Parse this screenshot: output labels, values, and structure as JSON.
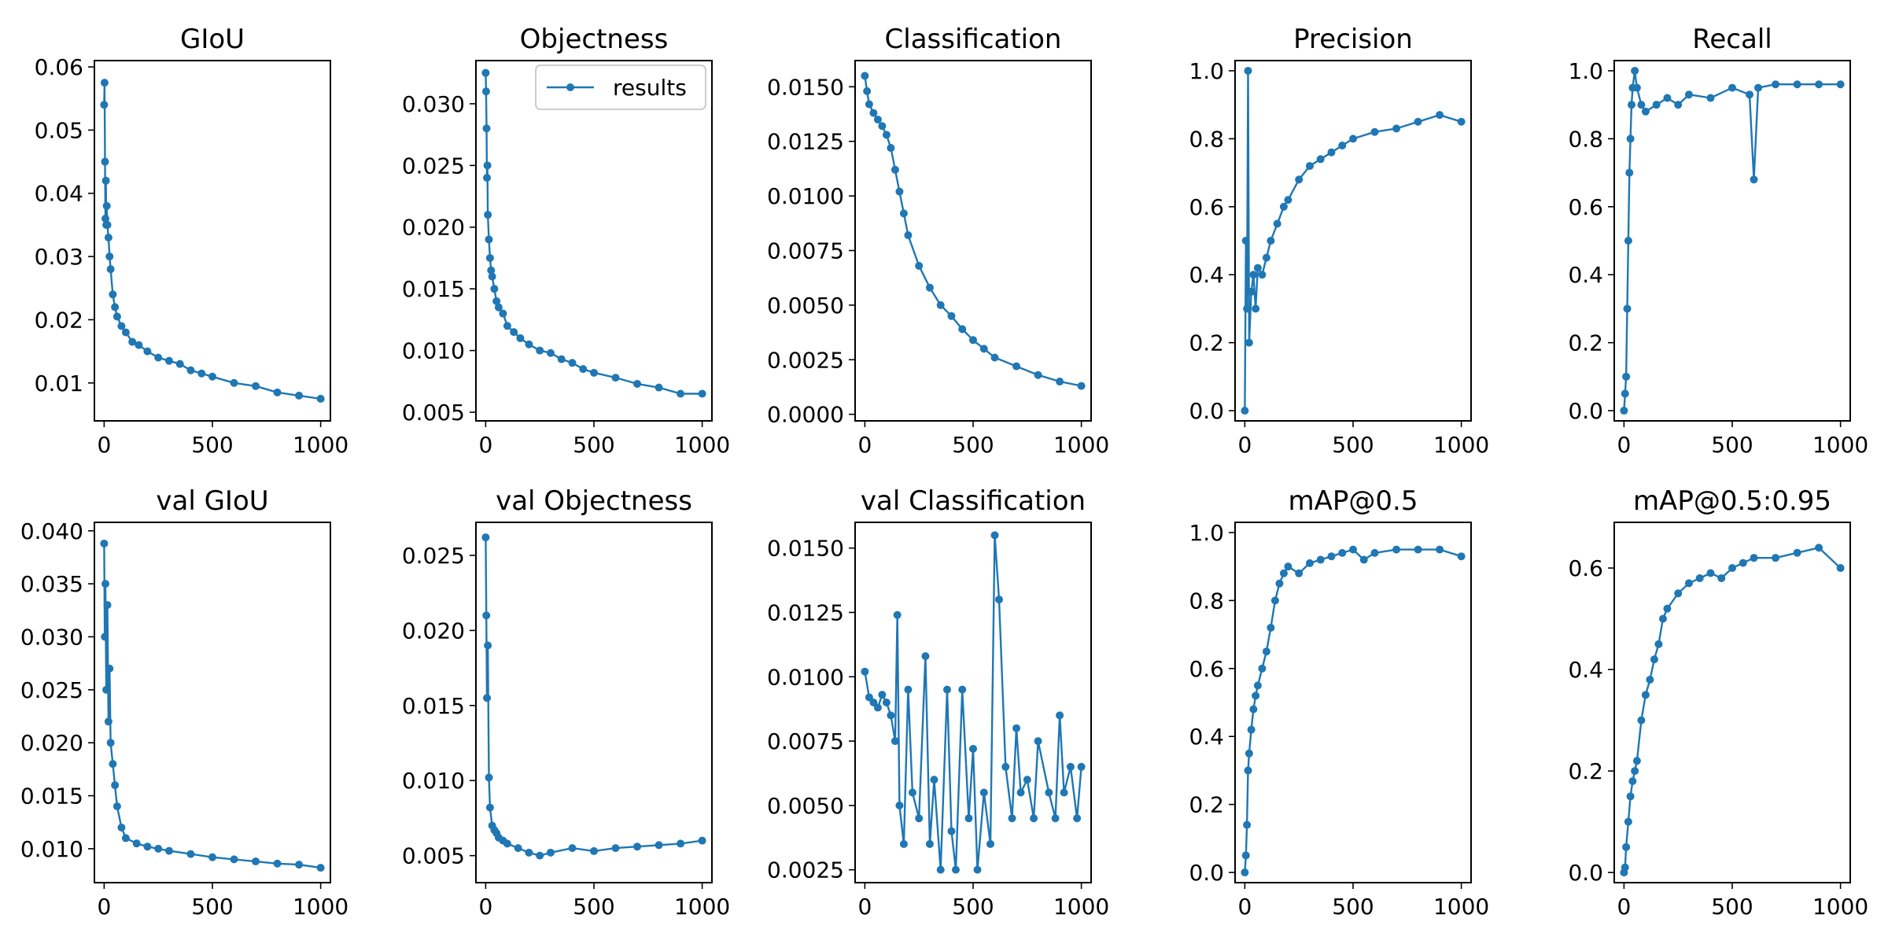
{
  "figure": {
    "line_color": "#1f77b4",
    "legend_label": "results"
  },
  "chart_data": [
    {
      "type": "scatter",
      "title": "GIoU",
      "ylim": [
        0.004,
        0.061
      ],
      "xlim": [
        -45,
        1045
      ],
      "xticks": [
        0,
        500,
        1000
      ],
      "yticks": [
        0.01,
        0.02,
        0.03,
        0.04,
        0.05,
        0.06
      ],
      "ytick_labels": [
        "0.01",
        "0.02",
        "0.03",
        "0.04",
        "0.05",
        "0.06"
      ],
      "series": [
        {
          "name": "results",
          "x": [
            0,
            2,
            4,
            6,
            8,
            10,
            12,
            15,
            20,
            25,
            30,
            40,
            50,
            60,
            80,
            100,
            130,
            160,
            200,
            250,
            300,
            350,
            400,
            450,
            500,
            600,
            700,
            800,
            900,
            1000
          ],
          "y": [
            0.054,
            0.0575,
            0.045,
            0.036,
            0.042,
            0.035,
            0.038,
            0.035,
            0.033,
            0.03,
            0.028,
            0.024,
            0.022,
            0.0205,
            0.019,
            0.018,
            0.0165,
            0.016,
            0.015,
            0.014,
            0.0135,
            0.013,
            0.012,
            0.0115,
            0.011,
            0.01,
            0.0095,
            0.0085,
            0.008,
            0.0075
          ]
        }
      ]
    },
    {
      "type": "scatter",
      "title": "Objectness",
      "ylim": [
        0.0043,
        0.0335
      ],
      "xlim": [
        -45,
        1045
      ],
      "xticks": [
        0,
        500,
        1000
      ],
      "yticks": [
        0.005,
        0.01,
        0.015,
        0.02,
        0.025,
        0.03
      ],
      "ytick_labels": [
        "0.005",
        "0.010",
        "0.015",
        "0.020",
        "0.025",
        "0.030"
      ],
      "legend": {
        "label": "results",
        "position": "upper right"
      },
      "series": [
        {
          "name": "results",
          "x": [
            0,
            2,
            4,
            6,
            8,
            10,
            15,
            20,
            25,
            30,
            40,
            50,
            60,
            80,
            100,
            130,
            160,
            200,
            250,
            300,
            350,
            400,
            450,
            500,
            600,
            700,
            800,
            900,
            1000
          ],
          "y": [
            0.0325,
            0.031,
            0.028,
            0.024,
            0.025,
            0.021,
            0.019,
            0.0175,
            0.0165,
            0.016,
            0.015,
            0.014,
            0.0135,
            0.013,
            0.012,
            0.0115,
            0.011,
            0.0105,
            0.01,
            0.0098,
            0.0093,
            0.009,
            0.0085,
            0.0082,
            0.0078,
            0.0073,
            0.007,
            0.0065,
            0.0065
          ]
        }
      ]
    },
    {
      "type": "scatter",
      "title": "Classification",
      "ylim": [
        -0.0003,
        0.0162
      ],
      "xlim": [
        -45,
        1045
      ],
      "xticks": [
        0,
        500,
        1000
      ],
      "yticks": [
        0,
        0.0025,
        0.005,
        0.0075,
        0.01,
        0.0125,
        0.015
      ],
      "ytick_labels": [
        "0.0000",
        "0.0025",
        "0.0050",
        "0.0075",
        "0.0100",
        "0.0125",
        "0.0150"
      ],
      "series": [
        {
          "name": "results",
          "x": [
            0,
            10,
            20,
            40,
            60,
            80,
            100,
            120,
            140,
            160,
            180,
            200,
            250,
            300,
            350,
            400,
            450,
            500,
            550,
            600,
            700,
            800,
            900,
            1000
          ],
          "y": [
            0.0155,
            0.0148,
            0.0142,
            0.0138,
            0.0135,
            0.0132,
            0.0128,
            0.0122,
            0.0112,
            0.0102,
            0.0092,
            0.0082,
            0.0068,
            0.0058,
            0.005,
            0.0045,
            0.0039,
            0.0034,
            0.003,
            0.0026,
            0.0022,
            0.0018,
            0.0015,
            0.0013
          ]
        }
      ]
    },
    {
      "type": "scatter",
      "title": "Precision",
      "ylim": [
        -0.03,
        1.03
      ],
      "xlim": [
        -45,
        1045
      ],
      "xticks": [
        0,
        500,
        1000
      ],
      "yticks": [
        0,
        0.2,
        0.4,
        0.6,
        0.8,
        1.0
      ],
      "ytick_labels": [
        "0.0",
        "0.2",
        "0.4",
        "0.6",
        "0.8",
        "1.0"
      ],
      "series": [
        {
          "name": "results",
          "x": [
            0,
            5,
            10,
            15,
            20,
            30,
            40,
            50,
            60,
            80,
            100,
            120,
            150,
            180,
            200,
            250,
            300,
            350,
            400,
            450,
            500,
            600,
            700,
            800,
            900,
            1000
          ],
          "y": [
            0.0,
            0.5,
            0.3,
            1.0,
            0.2,
            0.35,
            0.4,
            0.3,
            0.42,
            0.4,
            0.45,
            0.5,
            0.55,
            0.6,
            0.62,
            0.68,
            0.72,
            0.74,
            0.76,
            0.78,
            0.8,
            0.82,
            0.83,
            0.85,
            0.87,
            0.85
          ]
        }
      ]
    },
    {
      "type": "scatter",
      "title": "Recall",
      "ylim": [
        -0.03,
        1.03
      ],
      "xlim": [
        -45,
        1045
      ],
      "xticks": [
        0,
        500,
        1000
      ],
      "yticks": [
        0,
        0.2,
        0.4,
        0.6,
        0.8,
        1.0
      ],
      "ytick_labels": [
        "0.0",
        "0.2",
        "0.4",
        "0.6",
        "0.8",
        "1.0"
      ],
      "series": [
        {
          "name": "results",
          "x": [
            0,
            5,
            10,
            15,
            20,
            25,
            30,
            35,
            40,
            50,
            60,
            80,
            100,
            150,
            200,
            250,
            300,
            400,
            500,
            580,
            600,
            620,
            700,
            800,
            900,
            1000
          ],
          "y": [
            0.0,
            0.05,
            0.1,
            0.3,
            0.5,
            0.7,
            0.8,
            0.9,
            0.95,
            1.0,
            0.95,
            0.9,
            0.88,
            0.9,
            0.92,
            0.9,
            0.93,
            0.92,
            0.95,
            0.93,
            0.68,
            0.95,
            0.96,
            0.96,
            0.96,
            0.96
          ]
        }
      ]
    },
    {
      "type": "scatter",
      "title": "val GIoU",
      "ylim": [
        0.0068,
        0.0408
      ],
      "xlim": [
        -45,
        1045
      ],
      "xticks": [
        0,
        500,
        1000
      ],
      "yticks": [
        0.01,
        0.015,
        0.02,
        0.025,
        0.03,
        0.035,
        0.04
      ],
      "ytick_labels": [
        "0.010",
        "0.015",
        "0.020",
        "0.025",
        "0.030",
        "0.035",
        "0.040"
      ],
      "series": [
        {
          "name": "results",
          "x": [
            0,
            3,
            6,
            10,
            15,
            20,
            25,
            30,
            40,
            50,
            60,
            80,
            100,
            150,
            200,
            250,
            300,
            400,
            500,
            600,
            700,
            800,
            900,
            1000
          ],
          "y": [
            0.0388,
            0.03,
            0.035,
            0.025,
            0.033,
            0.022,
            0.027,
            0.02,
            0.018,
            0.016,
            0.014,
            0.012,
            0.011,
            0.0105,
            0.0102,
            0.01,
            0.0098,
            0.0095,
            0.0092,
            0.009,
            0.0088,
            0.0086,
            0.0085,
            0.0082
          ]
        }
      ]
    },
    {
      "type": "scatter",
      "title": "val Objectness",
      "ylim": [
        0.0032,
        0.0272
      ],
      "xlim": [
        -45,
        1045
      ],
      "xticks": [
        0,
        500,
        1000
      ],
      "yticks": [
        0.005,
        0.01,
        0.015,
        0.02,
        0.025
      ],
      "ytick_labels": [
        "0.005",
        "0.010",
        "0.015",
        "0.020",
        "0.025"
      ],
      "series": [
        {
          "name": "results",
          "x": [
            0,
            3,
            6,
            10,
            15,
            20,
            30,
            40,
            50,
            60,
            80,
            100,
            150,
            200,
            250,
            300,
            400,
            500,
            600,
            700,
            800,
            900,
            1000
          ],
          "y": [
            0.0262,
            0.021,
            0.0155,
            0.019,
            0.0102,
            0.0082,
            0.007,
            0.0067,
            0.0065,
            0.0062,
            0.006,
            0.0058,
            0.0055,
            0.0052,
            0.005,
            0.0052,
            0.0055,
            0.0053,
            0.0055,
            0.0056,
            0.0057,
            0.0058,
            0.006
          ]
        }
      ]
    },
    {
      "type": "scatter",
      "title": "val Classification",
      "ylim": [
        0.002,
        0.016
      ],
      "xlim": [
        -45,
        1045
      ],
      "xticks": [
        0,
        500,
        1000
      ],
      "yticks": [
        0.0025,
        0.005,
        0.0075,
        0.01,
        0.0125,
        0.015
      ],
      "ytick_labels": [
        "0.0025",
        "0.0050",
        "0.0075",
        "0.0100",
        "0.0125",
        "0.0150"
      ],
      "series": [
        {
          "name": "results",
          "x": [
            0,
            20,
            40,
            60,
            80,
            100,
            120,
            140,
            150,
            160,
            180,
            200,
            220,
            250,
            280,
            300,
            320,
            350,
            380,
            400,
            420,
            450,
            480,
            500,
            520,
            550,
            580,
            600,
            620,
            650,
            680,
            700,
            720,
            750,
            780,
            800,
            850,
            880,
            900,
            920,
            950,
            980,
            1000
          ],
          "y": [
            0.0102,
            0.0092,
            0.009,
            0.0088,
            0.0093,
            0.009,
            0.0085,
            0.0075,
            0.0124,
            0.005,
            0.0035,
            0.0095,
            0.0055,
            0.0045,
            0.0108,
            0.0035,
            0.006,
            0.0025,
            0.0095,
            0.004,
            0.0025,
            0.0095,
            0.0045,
            0.0072,
            0.0025,
            0.0055,
            0.0035,
            0.0155,
            0.013,
            0.0065,
            0.0045,
            0.008,
            0.0055,
            0.006,
            0.0045,
            0.0075,
            0.0055,
            0.0045,
            0.0085,
            0.0055,
            0.0065,
            0.0045,
            0.0065
          ]
        }
      ]
    },
    {
      "type": "scatter",
      "title": "mAP@0.5",
      "ylim": [
        -0.03,
        1.03
      ],
      "xlim": [
        -45,
        1045
      ],
      "xticks": [
        0,
        500,
        1000
      ],
      "yticks": [
        0,
        0.2,
        0.4,
        0.6,
        0.8,
        1.0
      ],
      "ytick_labels": [
        "0.0",
        "0.2",
        "0.4",
        "0.6",
        "0.8",
        "1.0"
      ],
      "series": [
        {
          "name": "results",
          "x": [
            0,
            5,
            10,
            15,
            20,
            30,
            40,
            50,
            60,
            80,
            100,
            120,
            140,
            160,
            180,
            200,
            250,
            300,
            350,
            400,
            450,
            500,
            550,
            600,
            700,
            800,
            900,
            1000
          ],
          "y": [
            0.0,
            0.05,
            0.14,
            0.3,
            0.35,
            0.42,
            0.48,
            0.52,
            0.55,
            0.6,
            0.65,
            0.72,
            0.8,
            0.85,
            0.88,
            0.9,
            0.88,
            0.91,
            0.92,
            0.93,
            0.94,
            0.95,
            0.92,
            0.94,
            0.95,
            0.95,
            0.95,
            0.93
          ]
        }
      ]
    },
    {
      "type": "scatter",
      "title": "mAP@0.5:0.95",
      "ylim": [
        -0.02,
        0.69
      ],
      "xlim": [
        -45,
        1045
      ],
      "xticks": [
        0,
        500,
        1000
      ],
      "yticks": [
        0,
        0.2,
        0.4,
        0.6
      ],
      "ytick_labels": [
        "0.0",
        "0.2",
        "0.4",
        "0.6"
      ],
      "series": [
        {
          "name": "results",
          "x": [
            0,
            5,
            10,
            20,
            30,
            40,
            50,
            60,
            80,
            100,
            120,
            140,
            160,
            180,
            200,
            250,
            300,
            350,
            400,
            450,
            500,
            550,
            600,
            700,
            800,
            900,
            1000
          ],
          "y": [
            0.0,
            0.01,
            0.05,
            0.1,
            0.15,
            0.18,
            0.2,
            0.22,
            0.3,
            0.35,
            0.38,
            0.42,
            0.45,
            0.5,
            0.52,
            0.55,
            0.57,
            0.58,
            0.59,
            0.58,
            0.6,
            0.61,
            0.62,
            0.62,
            0.63,
            0.64,
            0.6
          ]
        }
      ]
    }
  ]
}
